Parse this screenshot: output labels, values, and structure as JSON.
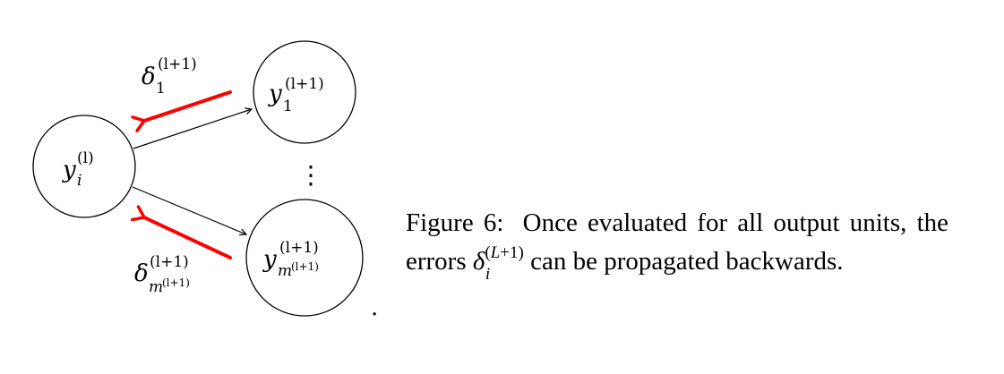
{
  "nodes": {
    "source": {
      "base": "y",
      "sub": "i",
      "sup": "(l)"
    },
    "target_first": {
      "base": "y",
      "sub": "1",
      "sup": "(l+1)"
    },
    "target_last": {
      "base": "y",
      "sub": "m",
      "sub_sup": "(l+1)",
      "sup": "(l+1)"
    }
  },
  "vdots": "⋮",
  "errors": {
    "first": {
      "base": "δ",
      "sub": "1",
      "sup": "(l+1)"
    },
    "last": {
      "base": "δ",
      "sub": "m",
      "sub_sup": "(l+1)",
      "sup": "(l+1)"
    }
  },
  "trailing_period": ".",
  "colors": {
    "error_arrow": "#ff0000",
    "stroke": "#000000"
  },
  "caption": {
    "label": "Figure 6:",
    "text_before": "Once evaluated for all output units, the errors",
    "symbol_base": "δ",
    "symbol_sub": "i",
    "symbol_sup_open": "(",
    "symbol_sup_var": "L",
    "symbol_sup_rest": "+1)",
    "text_after": "can be propagated backwards."
  }
}
